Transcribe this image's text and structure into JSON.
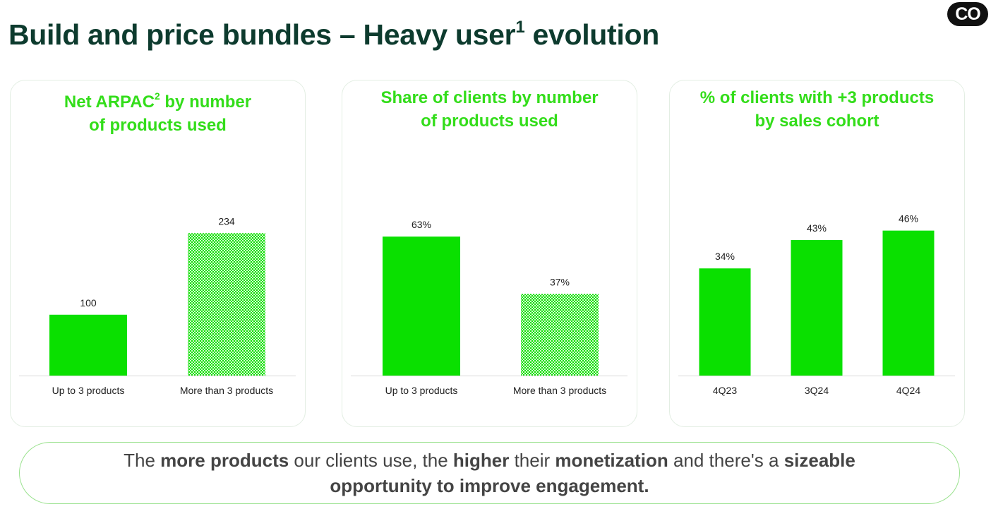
{
  "header": {
    "title_main": "Build and price bundles – Heavy user",
    "title_sup": "1",
    "title_end": " evolution",
    "logo_text": "CO"
  },
  "colors": {
    "accent": "#33dd1a",
    "bar": "#0ae000",
    "title": "#0d3b2e"
  },
  "chart_data": [
    {
      "type": "bar",
      "title_line1_a": "Net ARPAC",
      "title_sup": "2",
      "title_line1_b": " by number",
      "title_line2": "of products used",
      "categories": [
        "Up to 3 products",
        "More than 3 products"
      ],
      "values": [
        100,
        234
      ],
      "value_labels": [
        "100",
        "234"
      ],
      "patterns": [
        "solid",
        "dotted"
      ],
      "ylim": [
        0,
        290
      ]
    },
    {
      "type": "bar",
      "title_line1": "Share of clients by number",
      "title_line2": "of products used",
      "categories": [
        "Up to 3 products",
        "More than 3 products"
      ],
      "values": [
        63,
        37
      ],
      "value_labels": [
        "63%",
        "37%"
      ],
      "patterns": [
        "solid",
        "dotted"
      ],
      "ylim": [
        0,
        80
      ]
    },
    {
      "type": "bar",
      "title_line1": "% of clients with +3 products",
      "title_line2": "by sales cohort",
      "categories": [
        "4Q23",
        "3Q24",
        "4Q24"
      ],
      "values": [
        34,
        43,
        46
      ],
      "value_labels": [
        "34%",
        "43%",
        "46%"
      ],
      "patterns": [
        "solid",
        "solid",
        "solid"
      ],
      "ylim": [
        0,
        56
      ]
    }
  ],
  "takeaway": {
    "t1": "The ",
    "b1": "more products",
    "t2": " our clients use, the ",
    "b2": "higher",
    "t3": " their ",
    "b3": "monetization",
    "t4": " and there's a ",
    "b4": "sizeable",
    "b5": "opportunity to improve engagement."
  }
}
